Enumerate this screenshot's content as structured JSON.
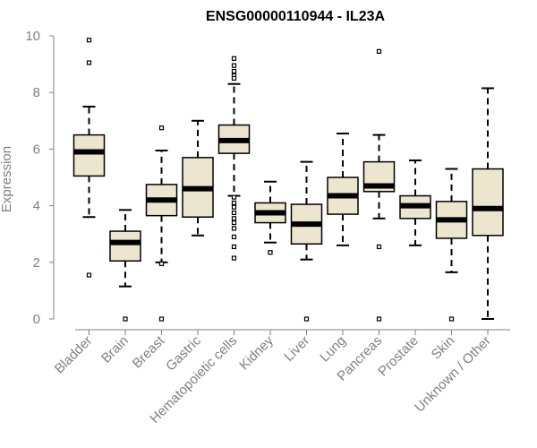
{
  "chart_data": {
    "type": "boxplot",
    "title": "ENSG00000110944 - IL23A",
    "xlabel": "",
    "ylabel": "Expression",
    "ylim": [
      0,
      10
    ],
    "yticks": [
      0,
      2,
      4,
      6,
      8,
      10
    ],
    "categories": [
      "Bladder",
      "Brain",
      "Breast",
      "Gastric",
      "Hematopoietic cells",
      "Kidney",
      "Liver",
      "Lung",
      "Pancreas",
      "Prostate",
      "Skin",
      "Unknown / Other"
    ],
    "boxes": [
      {
        "name": "Bladder",
        "whisker_low": 3.6,
        "q1": 5.05,
        "median": 5.9,
        "q3": 6.5,
        "whisker_high": 7.5,
        "outliers": [
          9.85,
          9.05,
          1.55
        ]
      },
      {
        "name": "Brain",
        "whisker_low": 1.15,
        "q1": 2.05,
        "median": 2.7,
        "q3": 3.1,
        "whisker_high": 3.85,
        "outliers": [
          0
        ]
      },
      {
        "name": "Breast",
        "whisker_low": 2.0,
        "q1": 3.65,
        "median": 4.2,
        "q3": 4.75,
        "whisker_high": 5.95,
        "outliers": [
          6.75,
          1.95,
          0
        ]
      },
      {
        "name": "Gastric",
        "whisker_low": 2.95,
        "q1": 3.6,
        "median": 4.6,
        "q3": 5.7,
        "whisker_high": 7.0,
        "outliers": []
      },
      {
        "name": "Hematopoietic cells",
        "whisker_low": 4.35,
        "q1": 5.85,
        "median": 6.3,
        "q3": 6.85,
        "whisker_high": 8.3,
        "outliers": [
          9.2,
          8.95,
          8.75,
          8.6,
          8.5,
          4.3,
          4.1,
          3.95,
          3.75,
          3.55,
          3.4,
          3.2,
          2.9,
          2.55,
          2.15
        ]
      },
      {
        "name": "Kidney",
        "whisker_low": 2.7,
        "q1": 3.4,
        "median": 3.75,
        "q3": 4.1,
        "whisker_high": 4.85,
        "outliers": [
          2.35
        ]
      },
      {
        "name": "Liver",
        "whisker_low": 2.1,
        "q1": 2.65,
        "median": 3.35,
        "q3": 4.05,
        "whisker_high": 5.55,
        "outliers": [
          0
        ]
      },
      {
        "name": "Lung",
        "whisker_low": 2.6,
        "q1": 3.7,
        "median": 4.35,
        "q3": 5.0,
        "whisker_high": 6.55,
        "outliers": []
      },
      {
        "name": "Pancreas",
        "whisker_low": 3.55,
        "q1": 4.5,
        "median": 4.7,
        "q3": 5.55,
        "whisker_high": 6.5,
        "outliers": [
          9.45,
          2.55,
          0
        ]
      },
      {
        "name": "Prostate",
        "whisker_low": 2.6,
        "q1": 3.55,
        "median": 4.0,
        "q3": 4.35,
        "whisker_high": 5.6,
        "outliers": []
      },
      {
        "name": "Skin",
        "whisker_low": 1.65,
        "q1": 2.85,
        "median": 3.5,
        "q3": 4.15,
        "whisker_high": 5.3,
        "outliers": [
          0
        ]
      },
      {
        "name": "Unknown / Other",
        "whisker_low": 0.0,
        "q1": 2.95,
        "median": 3.9,
        "q3": 5.3,
        "whisker_high": 8.15,
        "outliers": []
      }
    ],
    "colors": {
      "box_fill": "#ede6cf",
      "box_stroke": "#000000",
      "axis": "#808080",
      "text": "#808080"
    }
  }
}
